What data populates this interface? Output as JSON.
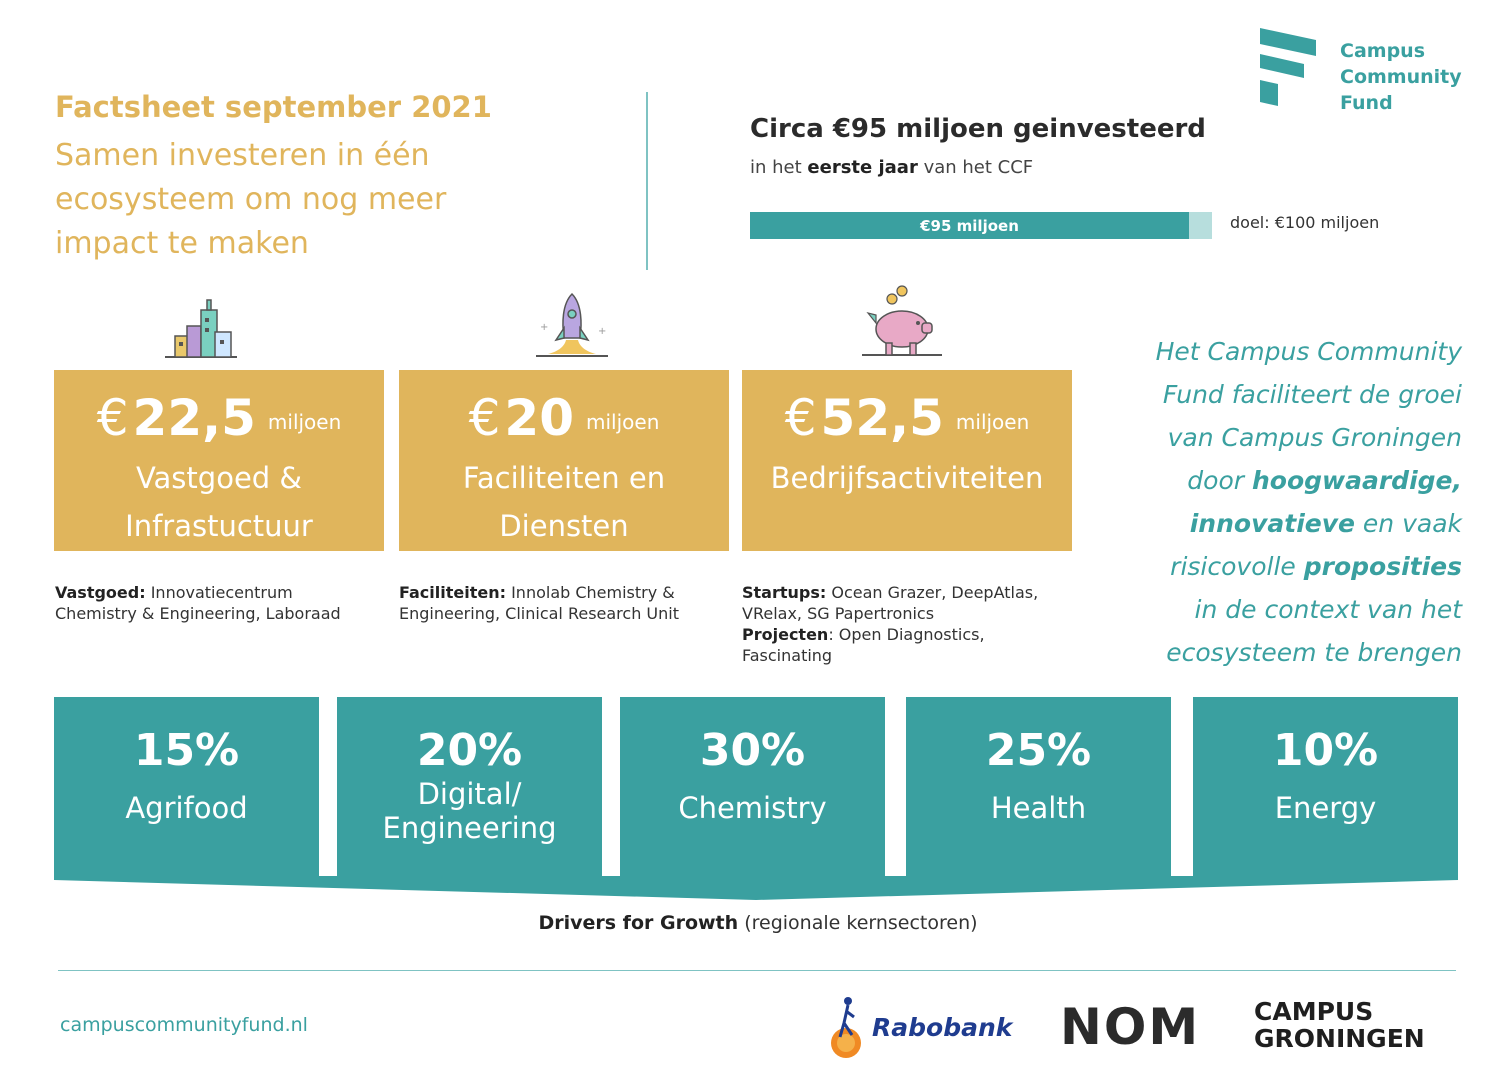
{
  "header": {
    "title": "Factsheet september 2021",
    "subtitle_lines": [
      "Samen investeren in één",
      "ecosysteem om nog meer",
      "impact te maken"
    ]
  },
  "investment": {
    "heading": "Circa €95 miljoen geinvesteerd",
    "sub_prefix": "in het ",
    "sub_bold": "eerste jaar",
    "sub_suffix": " van het CCF",
    "bar_label": "€95 miljoen",
    "bar_value": 95,
    "bar_goal_value": 100,
    "goal_label": "doel: €100 miljoen"
  },
  "logo": {
    "lines": [
      "Campus",
      "Community",
      "Fund"
    ]
  },
  "categories": [
    {
      "currency": "€",
      "amount": "22,5",
      "unit": "miljoen",
      "label_lines": [
        "Vastgoed &",
        "Infrastuctuur"
      ],
      "desc": [
        {
          "bold": "Vastgoed:",
          "text": " Innovatiecentrum Chemistry & Engineering, Laboraad"
        }
      ]
    },
    {
      "currency": "€",
      "amount": "20",
      "unit": "miljoen",
      "label_lines": [
        "Faciliteiten en",
        "Diensten"
      ],
      "desc": [
        {
          "bold": "Faciliteiten:",
          "text": " Innolab Chemistry & Engineering, Clinical Research Unit"
        }
      ]
    },
    {
      "currency": "€",
      "amount": "52,5",
      "unit": "miljoen",
      "label_lines": [
        "Bedrijfsactiviteiten"
      ],
      "desc": [
        {
          "bold": "Startups:",
          "text": " Ocean Grazer, DeepAtlas, VRelax, SG Papertronics"
        },
        {
          "bold": "Projecten",
          "text": ": Open Diagnostics, Fascinating"
        }
      ]
    }
  ],
  "quote": {
    "line1": "Het Campus Community",
    "line2": "Fund faciliteert de groei",
    "line3": "van Campus Groningen",
    "line4_pre": "door ",
    "line4_bold": "hoogwaardige,",
    "line5_bold": "innovatieve",
    "line5_post": " en vaak",
    "line6_pre": "risicovolle ",
    "line6_bold": "proposities",
    "line7": "in de context van het",
    "line8": "ecosysteem te brengen"
  },
  "sectors": [
    {
      "pct": "15%",
      "name_lines": [
        "Agrifood"
      ]
    },
    {
      "pct": "20%",
      "name_lines": [
        "Digital/",
        "Engineering"
      ]
    },
    {
      "pct": "30%",
      "name_lines": [
        "Chemistry"
      ]
    },
    {
      "pct": "25%",
      "name_lines": [
        "Health"
      ]
    },
    {
      "pct": "10%",
      "name_lines": [
        "Energy"
      ]
    }
  ],
  "drivers": {
    "bold": "Drivers for Growth",
    "rest": " (regionale kernsectoren)"
  },
  "footer": {
    "website": "campuscommunityfund.nl",
    "partner1": "Rabobank",
    "partner2": "NOM",
    "partner3_lines": [
      "CAMPUS",
      "GRONINGEN"
    ]
  },
  "colors": {
    "gold": "#e0b55c",
    "teal": "#3aa0a0",
    "light_teal": "#b7dedd"
  }
}
